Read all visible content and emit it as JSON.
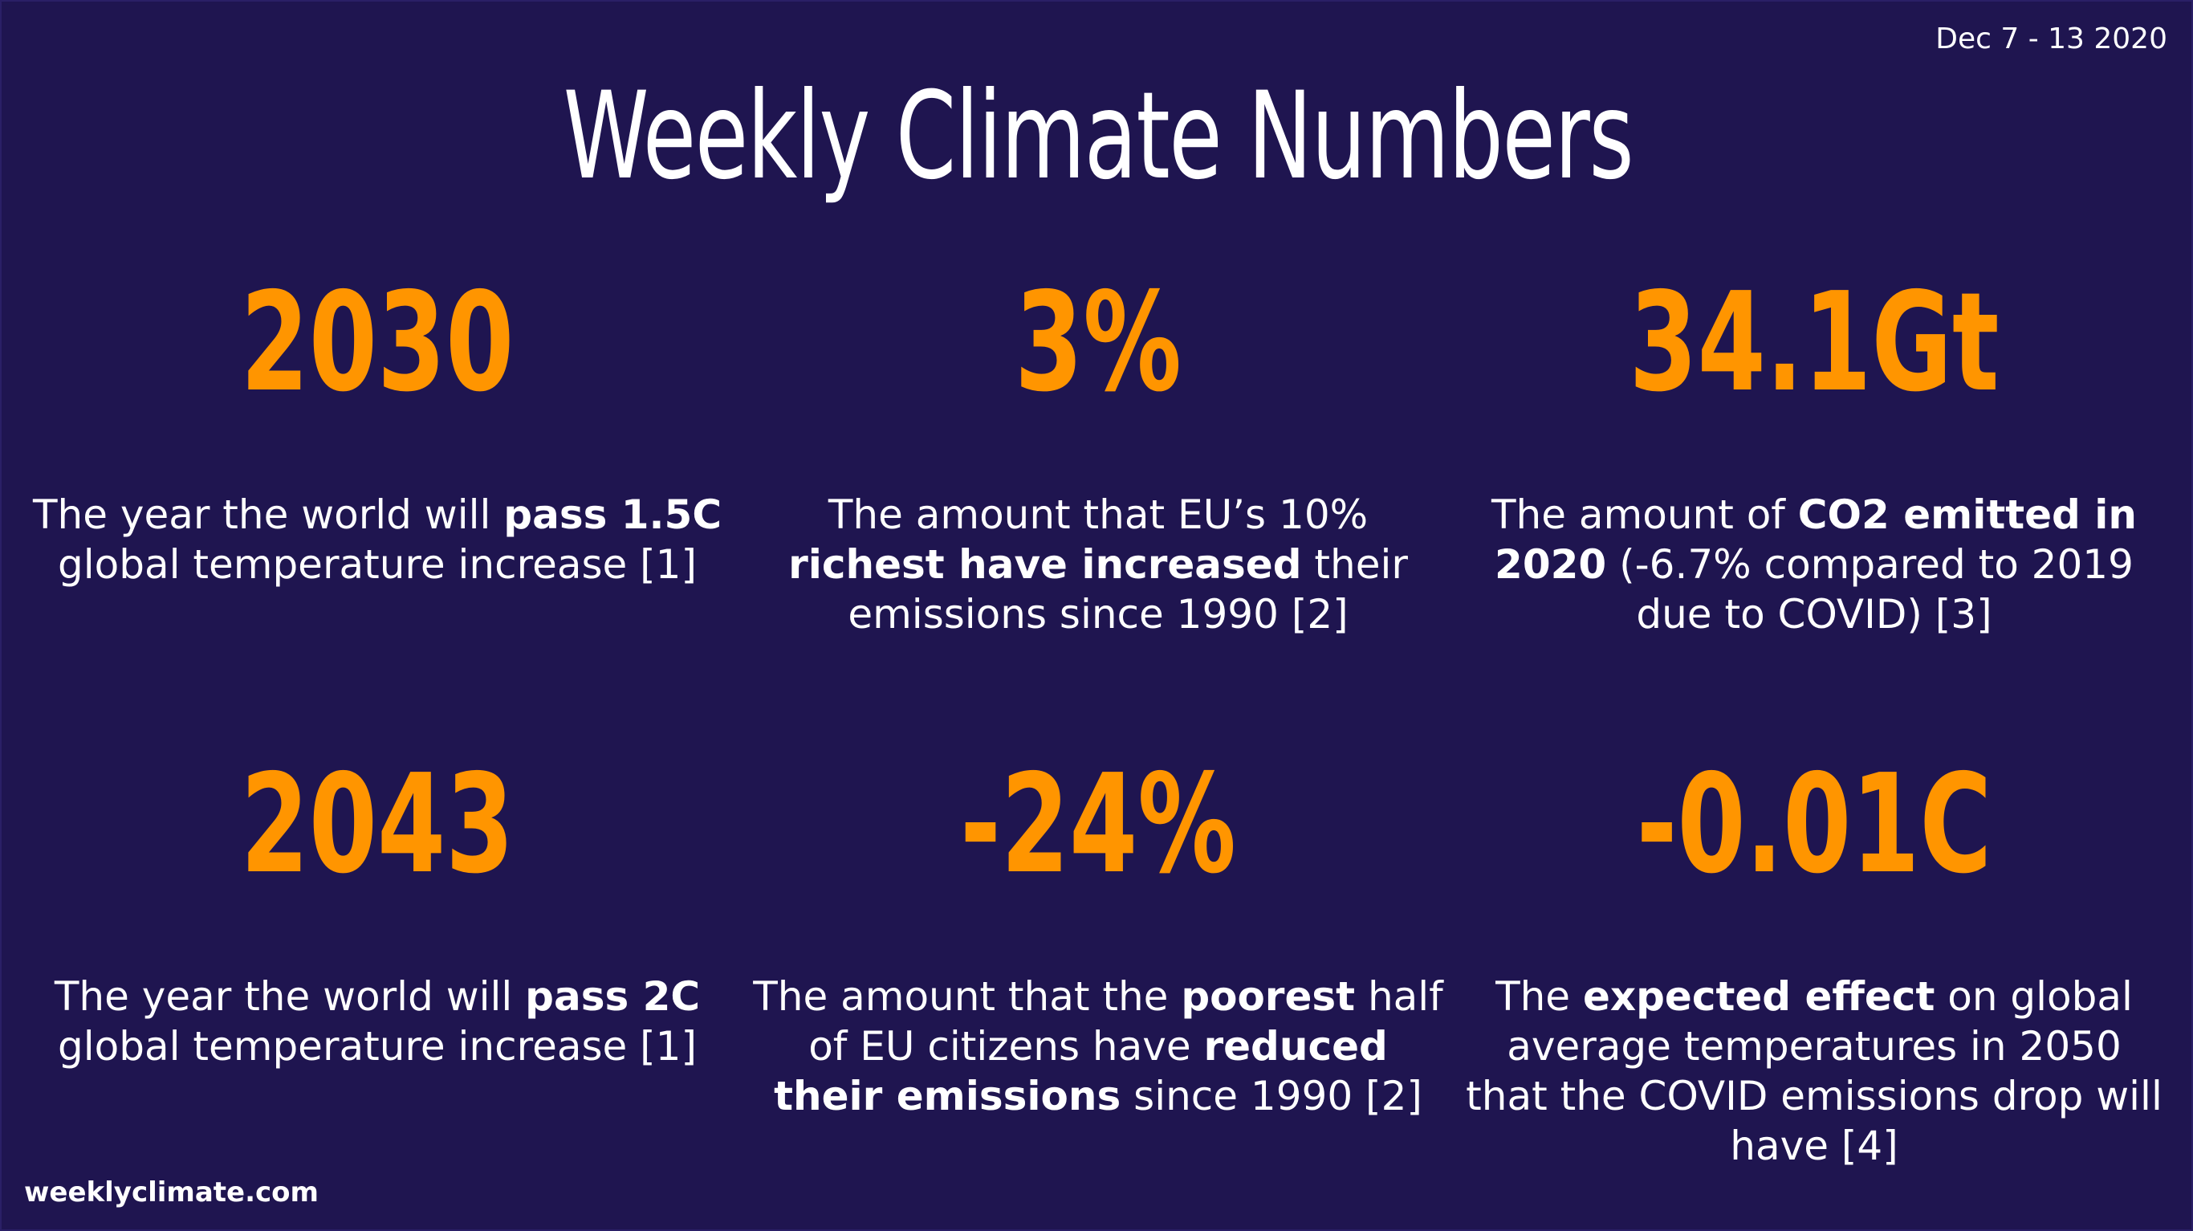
{
  "header": {
    "date_range": "Dec 7 - 13 2020",
    "title": "Weekly Climate Numbers"
  },
  "colors": {
    "background": "#1f1550",
    "accent": "#ff9500",
    "text": "#ffffff"
  },
  "stats": [
    {
      "value": "2030",
      "desc": [
        {
          "t": "The year the world will "
        },
        {
          "t": "pass 1.5C",
          "bold": true
        },
        {
          "t": " global temperature increase [1]"
        }
      ]
    },
    {
      "value": "3%",
      "desc": [
        {
          "t": "The amount that EU’s 10% "
        },
        {
          "t": "richest have increased",
          "bold": true
        },
        {
          "t": " their emissions since 1990 [2]"
        }
      ]
    },
    {
      "value": "34.1Gt",
      "desc": [
        {
          "t": "The amount of "
        },
        {
          "t": "CO2 emitted in 2020",
          "bold": true
        },
        {
          "t": " (-6.7% compared to 2019 due to COVID) [3]"
        }
      ]
    },
    {
      "value": "2043",
      "desc": [
        {
          "t": "The year the world will "
        },
        {
          "t": "pass 2C",
          "bold": true
        },
        {
          "t": " global temperature increase [1]"
        }
      ]
    },
    {
      "value": "-24%",
      "desc": [
        {
          "t": "The amount that the "
        },
        {
          "t": "poorest",
          "bold": true
        },
        {
          "t": " half of EU citizens have "
        },
        {
          "t": "reduced their emissions",
          "bold": true
        },
        {
          "t": " since 1990 [2]"
        }
      ]
    },
    {
      "value": "-0.01C",
      "desc": [
        {
          "t": "The "
        },
        {
          "t": "expected effect",
          "bold": true
        },
        {
          "t": " on global average temperatures in 2050 that the COVID emissions drop will have [4]"
        }
      ]
    }
  ],
  "footer": {
    "site": "weeklyclimate.com"
  }
}
